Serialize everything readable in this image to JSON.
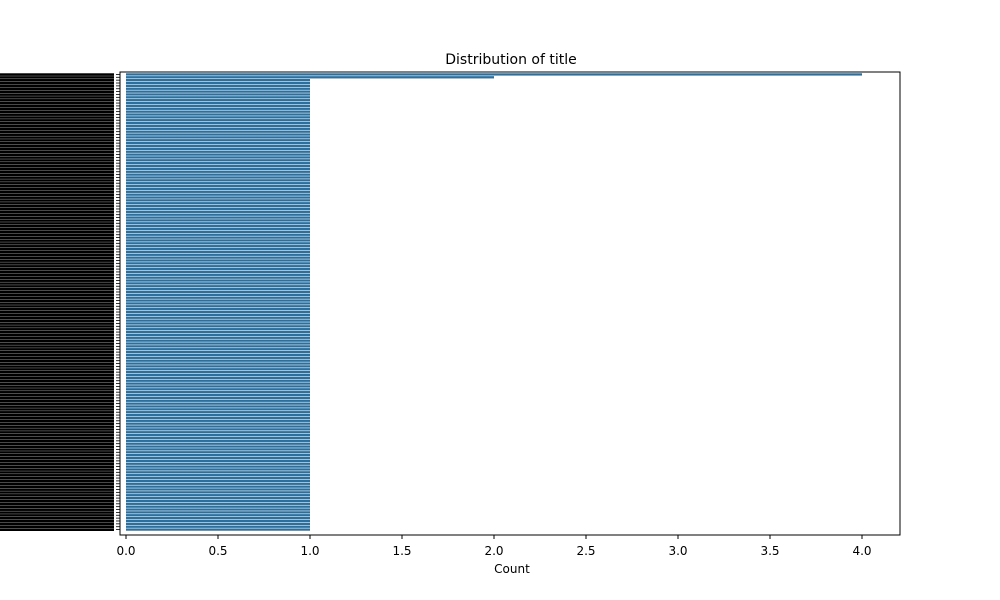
{
  "chart_data": {
    "type": "bar",
    "orientation": "horizontal",
    "title": "Distribution of title",
    "xlabel": "Count",
    "ylabel": "",
    "xlim": [
      0,
      4.2
    ],
    "xticks": [
      0.0,
      0.5,
      1.0,
      1.5,
      2.0,
      2.5,
      3.0,
      3.5,
      4.0
    ],
    "xtick_labels": [
      "0.0",
      "0.5",
      "1.0",
      "1.5",
      "2.0",
      "2.5",
      "3.0",
      "3.5",
      "4.0"
    ],
    "category_labels_legible": false,
    "series": [
      {
        "values": [
          4,
          2,
          1,
          1,
          1,
          1,
          1,
          1,
          1,
          1,
          1,
          1,
          1,
          1,
          1,
          1,
          1,
          1,
          1,
          1,
          1,
          1,
          1,
          1,
          1,
          1,
          1,
          1,
          1,
          1,
          1,
          1,
          1,
          1,
          1,
          1,
          1,
          1,
          1,
          1,
          1,
          1,
          1,
          1,
          1,
          1,
          1,
          1,
          1,
          1,
          1,
          1,
          1,
          1,
          1,
          1,
          1,
          1,
          1,
          1,
          1,
          1,
          1,
          1,
          1,
          1,
          1,
          1,
          1,
          1,
          1,
          1,
          1,
          1,
          1,
          1,
          1,
          1,
          1,
          1,
          1,
          1,
          1,
          1,
          1,
          1,
          1,
          1,
          1,
          1,
          1,
          1,
          1,
          1,
          1,
          1,
          1,
          1,
          1,
          1,
          1,
          1,
          1,
          1,
          1,
          1,
          1,
          1,
          1,
          1,
          1,
          1,
          1,
          1,
          1,
          1,
          1,
          1,
          1,
          1,
          1,
          1,
          1,
          1,
          1,
          1,
          1,
          1,
          1,
          1,
          1,
          1,
          1,
          1,
          1,
          1,
          1,
          1,
          1,
          1,
          1,
          1,
          1,
          1,
          1,
          1,
          1,
          1,
          1,
          1,
          1,
          1,
          1,
          1,
          1,
          1,
          1,
          1,
          1,
          1
        ]
      }
    ],
    "grid": false,
    "legend": "none",
    "colors": {
      "bar": "#2b6f9e",
      "axis": "#000000"
    }
  }
}
